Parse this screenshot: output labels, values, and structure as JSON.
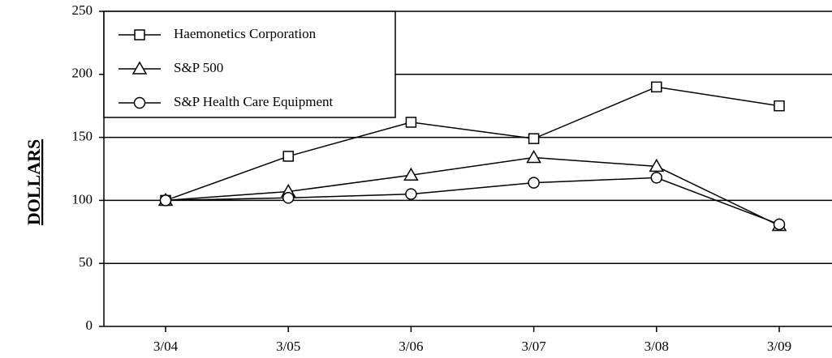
{
  "chart_data": {
    "type": "line",
    "y_label": "DOLLARS",
    "categories": [
      "3/04",
      "3/05",
      "3/06",
      "3/07",
      "3/08",
      "3/09"
    ],
    "series": [
      {
        "name": "Haemonetics Corporation",
        "color": "#000000",
        "marker": "square",
        "values": [
          100,
          135,
          162,
          149,
          190,
          175
        ]
      },
      {
        "name": "S&P 500",
        "color": "#000000",
        "marker": "triangle",
        "values": [
          100,
          107,
          120,
          134,
          127,
          80
        ]
      },
      {
        "name": "S&P Health Care Equipment",
        "color": "#000000",
        "marker": "circle",
        "values": [
          100,
          102,
          105,
          114,
          118,
          81
        ]
      }
    ],
    "ylim": [
      0,
      250
    ],
    "yticks": [
      0,
      50,
      100,
      150,
      200,
      250
    ],
    "grid": true,
    "legend": "upper left"
  }
}
